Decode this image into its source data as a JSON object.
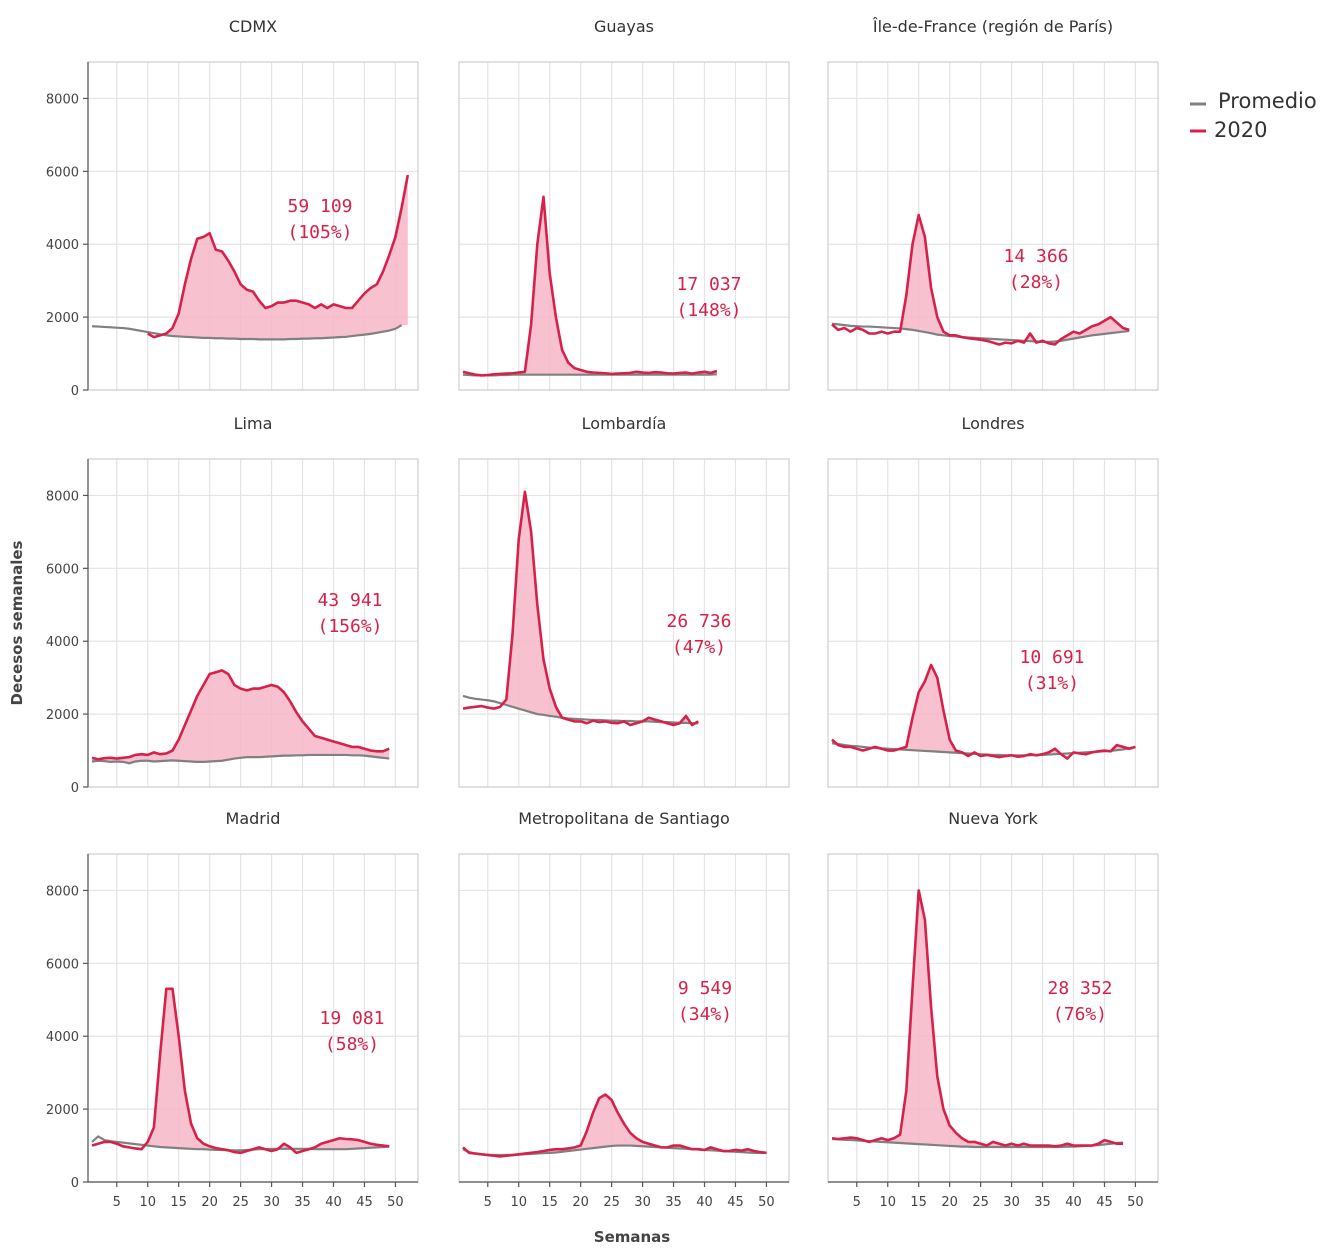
{
  "chart_data": {
    "type": "line",
    "layout": "3x3 small multiples, shared axes",
    "xlabel": "Semanas",
    "ylabel": "Decesos semanales",
    "xticks": [
      5,
      10,
      15,
      20,
      25,
      30,
      35,
      40,
      45,
      50
    ],
    "yticks": [
      0,
      2000,
      4000,
      6000,
      8000
    ],
    "xlim": [
      1,
      53
    ],
    "ylim": [
      0,
      9000
    ],
    "grid": true,
    "legend_position": "top-right",
    "legend": [
      {
        "name": "Promedio",
        "color": "#808080"
      },
      {
        "name": "2020",
        "color": "#d6224a"
      }
    ],
    "colors": {
      "avg": "#808080",
      "y2020": "#d6224a",
      "fill": "#f7b6c8"
    },
    "panels": [
      {
        "title": "CDMX",
        "annotation": [
          "59 109",
          "(105%)"
        ],
        "avg": {
          "start": 1,
          "values": [
            1750,
            1740,
            1730,
            1720,
            1710,
            1700,
            1680,
            1650,
            1620,
            1590,
            1560,
            1530,
            1500,
            1480,
            1470,
            1460,
            1450,
            1440,
            1430,
            1430,
            1420,
            1420,
            1410,
            1410,
            1400,
            1400,
            1400,
            1390,
            1390,
            1390,
            1390,
            1390,
            1400,
            1400,
            1410,
            1410,
            1420,
            1420,
            1430,
            1440,
            1450,
            1460,
            1480,
            1500,
            1520,
            1540,
            1570,
            1600,
            1630,
            1680,
            1780
          ]
        },
        "y2020": {
          "start": 10,
          "values": [
            1550,
            1450,
            1500,
            1550,
            1700,
            2100,
            2900,
            3600,
            4150,
            4200,
            4300,
            3850,
            3800,
            3550,
            3250,
            2900,
            2750,
            2700,
            2450,
            2250,
            2300,
            2400,
            2400,
            2450,
            2450,
            2400,
            2350,
            2250,
            2350,
            2250,
            2350,
            2300,
            2250,
            2250,
            2450,
            2650,
            2800,
            2900,
            3250,
            3700,
            4200,
            5000,
            5900
          ]
        }
      },
      {
        "title": "Guayas",
        "annotation": [
          "17 037",
          "(148%)"
        ],
        "avg": {
          "start": 1,
          "values": [
            420,
            410,
            400,
            400,
            400,
            400,
            410,
            410,
            420,
            420,
            420,
            420,
            420,
            420,
            420,
            420,
            420,
            420,
            420,
            420,
            420,
            420,
            420,
            420,
            420,
            420,
            420,
            420,
            420,
            420,
            420,
            420,
            420,
            420,
            420,
            420,
            420,
            420,
            420,
            420,
            420,
            430
          ]
        },
        "y2020": {
          "start": 1,
          "values": [
            500,
            460,
            420,
            400,
            410,
            430,
            440,
            450,
            460,
            480,
            500,
            1800,
            4000,
            5300,
            3200,
            2000,
            1100,
            750,
            600,
            550,
            500,
            480,
            470,
            460,
            440,
            450,
            460,
            470,
            500,
            480,
            470,
            490,
            480,
            460,
            450,
            470,
            480,
            450,
            480,
            500,
            470,
            520
          ]
        }
      },
      {
        "title": "Île-de-France (región de París)",
        "annotation": [
          "14 366",
          "(28%)"
        ],
        "avg": {
          "start": 1,
          "values": [
            1820,
            1800,
            1780,
            1760,
            1750,
            1740,
            1740,
            1730,
            1720,
            1710,
            1700,
            1690,
            1670,
            1650,
            1620,
            1590,
            1560,
            1520,
            1500,
            1480,
            1470,
            1450,
            1440,
            1430,
            1420,
            1410,
            1400,
            1390,
            1380,
            1370,
            1360,
            1350,
            1340,
            1330,
            1320,
            1320,
            1330,
            1350,
            1380,
            1410,
            1440,
            1470,
            1500,
            1520,
            1540,
            1560,
            1580,
            1600,
            1620
          ]
        },
        "y2020": {
          "start": 1,
          "values": [
            1800,
            1650,
            1700,
            1600,
            1700,
            1650,
            1550,
            1550,
            1600,
            1550,
            1600,
            1600,
            2600,
            4000,
            4800,
            4200,
            2800,
            2000,
            1600,
            1500,
            1500,
            1450,
            1420,
            1400,
            1380,
            1350,
            1300,
            1250,
            1300,
            1280,
            1350,
            1300,
            1550,
            1300,
            1350,
            1280,
            1250,
            1400,
            1500,
            1600,
            1550,
            1650,
            1750,
            1800,
            1900,
            2000,
            1850,
            1700,
            1650
          ]
        }
      },
      {
        "title": "Lima",
        "annotation": [
          "43 941",
          "(156%)"
        ],
        "avg": {
          "start": 1,
          "values": [
            700,
            720,
            710,
            690,
            700,
            690,
            650,
            700,
            720,
            720,
            700,
            710,
            720,
            730,
            720,
            710,
            700,
            690,
            690,
            700,
            710,
            720,
            750,
            780,
            800,
            820,
            820,
            820,
            830,
            840,
            850,
            860,
            860,
            870,
            870,
            880,
            880,
            880,
            880,
            880,
            880,
            880,
            870,
            870,
            860,
            840,
            820,
            800,
            780
          ]
        },
        "y2020": {
          "start": 1,
          "values": [
            800,
            760,
            790,
            800,
            780,
            800,
            820,
            880,
            900,
            880,
            950,
            900,
            920,
            1000,
            1300,
            1700,
            2100,
            2500,
            2800,
            3100,
            3150,
            3200,
            3100,
            2800,
            2700,
            2650,
            2700,
            2700,
            2750,
            2800,
            2750,
            2600,
            2350,
            2050,
            1800,
            1600,
            1400,
            1350,
            1300,
            1250,
            1200,
            1150,
            1100,
            1100,
            1050,
            1000,
            980,
            980,
            1050
          ]
        }
      },
      {
        "title": "Lombardía",
        "annotation": [
          "26 736",
          "(47%)"
        ],
        "avg": {
          "start": 1,
          "values": [
            2500,
            2450,
            2420,
            2400,
            2380,
            2350,
            2300,
            2250,
            2200,
            2150,
            2100,
            2050,
            2000,
            1980,
            1950,
            1930,
            1900,
            1880,
            1870,
            1860,
            1850,
            1840,
            1840,
            1830,
            1820,
            1820,
            1810,
            1810,
            1800,
            1800,
            1800,
            1790,
            1780,
            1780,
            1770,
            1760,
            1760,
            1750,
            1750
          ]
        },
        "y2020": {
          "start": 1,
          "values": [
            2150,
            2180,
            2200,
            2220,
            2180,
            2150,
            2200,
            2400,
            4200,
            6800,
            8100,
            7000,
            5000,
            3500,
            2700,
            2200,
            1900,
            1850,
            1800,
            1800,
            1750,
            1820,
            1780,
            1800,
            1760,
            1750,
            1800,
            1700,
            1750,
            1800,
            1900,
            1850,
            1800,
            1750,
            1700,
            1750,
            1950,
            1700,
            1800
          ]
        }
      },
      {
        "title": "Londres",
        "annotation": [
          "10 691",
          "(31%)"
        ],
        "avg": {
          "start": 1,
          "values": [
            1200,
            1180,
            1150,
            1130,
            1120,
            1100,
            1080,
            1070,
            1060,
            1050,
            1040,
            1030,
            1020,
            1010,
            1000,
            990,
            980,
            970,
            960,
            950,
            940,
            930,
            920,
            910,
            900,
            890,
            880,
            880,
            870,
            870,
            870,
            870,
            870,
            880,
            880,
            890,
            900,
            910,
            920,
            930,
            940,
            950,
            960,
            970,
            980,
            990,
            1010,
            1030,
            1060,
            1100
          ]
        },
        "y2020": {
          "start": 1,
          "values": [
            1300,
            1150,
            1100,
            1100,
            1050,
            1000,
            1050,
            1100,
            1050,
            1000,
            1000,
            1050,
            1100,
            1900,
            2600,
            2900,
            3350,
            3000,
            2100,
            1300,
            1000,
            950,
            850,
            950,
            850,
            880,
            850,
            820,
            850,
            870,
            830,
            850,
            900,
            870,
            900,
            950,
            1050,
            900,
            780,
            950,
            920,
            900,
            950,
            980,
            1000,
            980,
            1150,
            1100,
            1050,
            1100
          ]
        }
      },
      {
        "title": "Madrid",
        "annotation": [
          "19 081",
          "(58%)"
        ],
        "avg": {
          "start": 1,
          "values": [
            1100,
            1250,
            1150,
            1120,
            1100,
            1080,
            1060,
            1040,
            1020,
            1000,
            980,
            960,
            950,
            940,
            930,
            920,
            910,
            900,
            900,
            890,
            880,
            880,
            870,
            870,
            870,
            880,
            890,
            900,
            900,
            910,
            910,
            910,
            910,
            910,
            910,
            910,
            900,
            900,
            900,
            900,
            900,
            900,
            910,
            920,
            930,
            940,
            950,
            960,
            970
          ]
        },
        "y2020": {
          "start": 1,
          "values": [
            1000,
            1050,
            1100,
            1100,
            1050,
            980,
            950,
            920,
            900,
            1100,
            1500,
            3500,
            5300,
            5300,
            4000,
            2500,
            1600,
            1200,
            1050,
            980,
            930,
            900,
            870,
            820,
            800,
            850,
            900,
            950,
            900,
            850,
            900,
            1050,
            950,
            800,
            850,
            900,
            950,
            1050,
            1100,
            1150,
            1200,
            1180,
            1170,
            1150,
            1100,
            1050,
            1020,
            1000,
            980
          ]
        }
      },
      {
        "title": "Metropolitana de Santiago",
        "annotation": [
          "9 549",
          "(34%)"
        ],
        "avg": {
          "start": 1,
          "values": [
            900,
            820,
            780,
            760,
            750,
            740,
            740,
            740,
            740,
            750,
            760,
            770,
            780,
            790,
            800,
            810,
            830,
            850,
            870,
            890,
            910,
            930,
            950,
            970,
            990,
            1000,
            1000,
            1000,
            990,
            980,
            970,
            960,
            950,
            940,
            930,
            920,
            910,
            900,
            890,
            880,
            870,
            860,
            850,
            840,
            830,
            820,
            810,
            800,
            800,
            800
          ]
        },
        "y2020": {
          "start": 1,
          "values": [
            950,
            800,
            780,
            760,
            740,
            720,
            700,
            720,
            740,
            760,
            780,
            800,
            820,
            850,
            880,
            900,
            900,
            920,
            950,
            1000,
            1400,
            1900,
            2300,
            2400,
            2250,
            1900,
            1600,
            1350,
            1200,
            1100,
            1050,
            1000,
            950,
            950,
            1000,
            1000,
            950,
            900,
            900,
            880,
            950,
            900,
            850,
            850,
            880,
            860,
            900,
            850,
            820,
            800
          ]
        }
      },
      {
        "title": "Nueva York",
        "annotation": [
          "28 352",
          "(76%)"
        ],
        "avg": {
          "start": 1,
          "values": [
            1180,
            1170,
            1160,
            1150,
            1140,
            1130,
            1120,
            1110,
            1100,
            1090,
            1080,
            1070,
            1060,
            1050,
            1040,
            1030,
            1020,
            1010,
            1000,
            990,
            980,
            970,
            970,
            960,
            960,
            960,
            960,
            960,
            960,
            960,
            960,
            960,
            960,
            960,
            960,
            960,
            960,
            960,
            970,
            970,
            980,
            990,
            1000,
            1010,
            1030,
            1050,
            1070,
            1080
          ]
        },
        "y2020": {
          "start": 1,
          "values": [
            1200,
            1180,
            1200,
            1220,
            1200,
            1150,
            1100,
            1150,
            1200,
            1150,
            1200,
            1300,
            2500,
            5300,
            8000,
            7200,
            4800,
            2900,
            2000,
            1550,
            1350,
            1200,
            1100,
            1100,
            1050,
            1000,
            1100,
            1050,
            1000,
            1050,
            1000,
            1050,
            1000,
            1000,
            1000,
            1000,
            980,
            1000,
            1050,
            1000,
            1000,
            1000,
            1000,
            1050,
            1150,
            1100,
            1050,
            1050
          ]
        }
      }
    ]
  }
}
